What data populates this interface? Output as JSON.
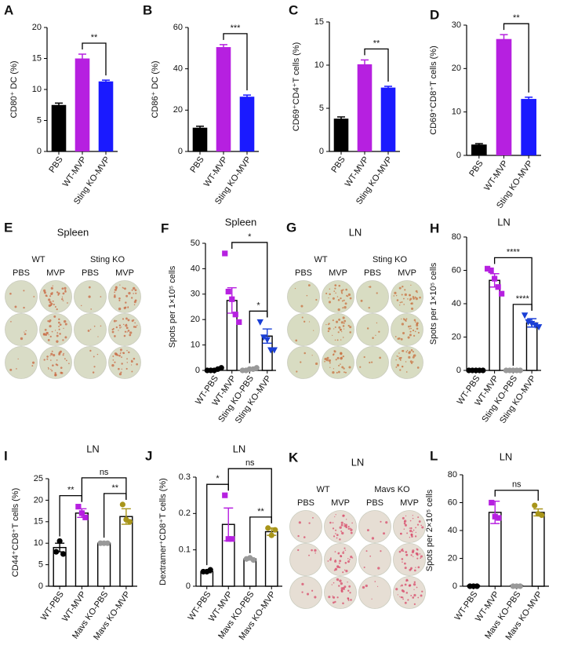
{
  "chart_data": [
    {
      "type": "bar",
      "panel": "A",
      "ylabel": "CD80⁺ DC (%)",
      "categories": [
        "PBS",
        "WT-MVP",
        "Sting KO-MVP"
      ],
      "values": [
        7.5,
        15,
        11.3
      ],
      "errors": [
        0.3,
        0.7,
        0.2
      ],
      "colors": [
        "#000000",
        "#b620e0",
        "#1a1aff"
      ],
      "ylim": [
        0,
        20
      ],
      "yticks": [
        0,
        5,
        10,
        15,
        20
      ],
      "brackets": [
        {
          "between": [
            "WT-MVP",
            "Sting KO-MVP"
          ],
          "label": "**"
        }
      ]
    },
    {
      "type": "bar",
      "panel": "B",
      "ylabel": "CD86⁺ DC (%)",
      "categories": [
        "PBS",
        "WT-MVP",
        "Sting KO-MVP"
      ],
      "values": [
        11.5,
        50.5,
        26.5
      ],
      "errors": [
        0.7,
        1.2,
        0.8
      ],
      "colors": [
        "#000000",
        "#b620e0",
        "#1a1aff"
      ],
      "ylim": [
        0,
        60
      ],
      "yticks": [
        0,
        20,
        40,
        60
      ],
      "brackets": [
        {
          "between": [
            "WT-MVP",
            "Sting KO-MVP"
          ],
          "label": "***"
        }
      ]
    },
    {
      "type": "bar",
      "panel": "C",
      "ylabel": "CD69⁺CD4⁺T cells (%)",
      "categories": [
        "PBS",
        "WT-MVP",
        "Sting KO-MVP"
      ],
      "values": [
        3.8,
        10.1,
        7.4
      ],
      "errors": [
        0.2,
        0.5,
        0.15
      ],
      "colors": [
        "#000000",
        "#b620e0",
        "#1a1aff"
      ],
      "ylim": [
        0,
        15
      ],
      "yticks": [
        0,
        5,
        10,
        15
      ],
      "brackets": [
        {
          "between": [
            "WT-MVP",
            "Sting KO-MVP"
          ],
          "label": "**"
        }
      ]
    },
    {
      "type": "bar",
      "panel": "D",
      "ylabel": "CD69⁺CD8⁺T cells (%)",
      "categories": [
        "PBS",
        "WT-MVP",
        "Sting KO-MVP"
      ],
      "values": [
        2.5,
        26.8,
        13
      ],
      "errors": [
        0.2,
        1,
        0.4
      ],
      "colors": [
        "#000000",
        "#b620e0",
        "#1a1aff"
      ],
      "ylim": [
        0,
        30
      ],
      "yticks": [
        0,
        10,
        20,
        30
      ],
      "brackets": [
        {
          "between": [
            "WT-MVP",
            "Sting KO-MVP"
          ],
          "label": "**"
        }
      ]
    },
    {
      "type": "bar_dot",
      "panel": "F",
      "title": "Spleen",
      "ylabel": "Spots per 1×10⁵ cells",
      "categories": [
        "WT-PBS",
        "WT-MVP",
        "Sting KO-PBS",
        "Sting KO-MVP"
      ],
      "values": [
        0.4,
        27.5,
        0.4,
        13.5
      ],
      "errors": [
        0.2,
        5,
        0.2,
        2.8
      ],
      "points": [
        [
          0,
          0,
          0,
          0.5,
          1
        ],
        [
          46,
          31,
          28,
          22,
          19
        ],
        [
          0,
          0,
          0.5,
          0.5,
          1
        ],
        [
          19,
          13,
          12,
          8,
          8
        ]
      ],
      "point_colors": [
        "#000000",
        "#b620e0",
        "#999999",
        "#1a3fd6"
      ],
      "markers": [
        "circle",
        "square",
        "circle",
        "triangle-down"
      ],
      "ylim": [
        0,
        50
      ],
      "yticks": [
        0,
        10,
        20,
        30,
        40,
        50
      ],
      "brackets": [
        {
          "between": [
            "Sting KO-PBS",
            "Sting KO-MVP"
          ],
          "label": "*"
        },
        {
          "between": [
            "WT-MVP",
            "Sting KO-MVP"
          ],
          "label": "*"
        }
      ]
    },
    {
      "type": "bar_dot",
      "panel": "H",
      "title": "LN",
      "ylabel": "Spots per 1×10⁵ cells",
      "categories": [
        "WT-PBS",
        "WT-MVP",
        "Sting KO-PBS",
        "Sting KO-MVP"
      ],
      "values": [
        0,
        54,
        0,
        28.5
      ],
      "errors": [
        0,
        4,
        0,
        2.5
      ],
      "points": [
        [
          0,
          0,
          0,
          0,
          0
        ],
        [
          61,
          60,
          55,
          50,
          46
        ],
        [
          0,
          0,
          0,
          0,
          0
        ],
        [
          33,
          29,
          28,
          27,
          26
        ]
      ],
      "point_colors": [
        "#000000",
        "#b620e0",
        "#999999",
        "#1a3fd6"
      ],
      "markers": [
        "circle",
        "square",
        "circle",
        "triangle-down"
      ],
      "ylim": [
        0,
        80
      ],
      "yticks": [
        0,
        20,
        40,
        60,
        80
      ],
      "brackets": [
        {
          "between": [
            "Sting KO-PBS",
            "Sting KO-MVP"
          ],
          "label": "****"
        },
        {
          "between": [
            "WT-MVP",
            "Sting KO-MVP"
          ],
          "label": "****"
        }
      ]
    },
    {
      "type": "bar_dot",
      "panel": "I",
      "title": "LN",
      "ylabel": "CD44⁺CD8⁺T cells (%)",
      "categories": [
        "WT-PBS",
        "WT-MVP",
        "Mavs KO-PBS",
        "Mavs KO-MVP"
      ],
      "values": [
        9,
        17,
        10,
        16.2
      ],
      "errors": [
        1,
        1,
        0.2,
        1.8
      ],
      "points": [
        [
          8,
          10.5,
          7.5
        ],
        [
          18.5,
          17,
          16
        ],
        [
          10,
          10,
          10
        ],
        [
          19,
          15.5,
          15
        ]
      ],
      "point_colors": [
        "#000000",
        "#b620e0",
        "#999999",
        "#a8951a"
      ],
      "markers": [
        "circle",
        "square",
        "circle",
        "circle"
      ],
      "ylim": [
        0,
        25
      ],
      "yticks": [
        0,
        5,
        10,
        15,
        20,
        25
      ],
      "brackets": [
        {
          "between": [
            "WT-PBS",
            "WT-MVP"
          ],
          "label": "**"
        },
        {
          "between": [
            "Mavs KO-PBS",
            "Mavs KO-MVP"
          ],
          "label": "**"
        },
        {
          "between": [
            "WT-MVP",
            "Mavs KO-MVP"
          ],
          "label": "ns"
        }
      ]
    },
    {
      "type": "bar_dot",
      "panel": "J",
      "title": "LN",
      "ylabel": "Dextramer⁺CD8⁺T cells (%)",
      "categories": [
        "WT-PBS",
        "WT-MVP",
        "Mavs KO-PBS",
        "Mavs KO-MVP"
      ],
      "values": [
        0.04,
        0.17,
        0.075,
        0.15
      ],
      "errors": [
        0.003,
        0.045,
        0.003,
        0.01
      ],
      "points": [
        [
          0.04,
          0.04,
          0.045
        ],
        [
          0.25,
          0.13,
          0.13
        ],
        [
          0.075,
          0.078,
          0.072
        ],
        [
          0.16,
          0.14,
          0.155
        ]
      ],
      "point_colors": [
        "#000000",
        "#b620e0",
        "#999999",
        "#a8951a"
      ],
      "markers": [
        "circle",
        "square",
        "circle",
        "circle"
      ],
      "ylim": [
        0,
        0.3
      ],
      "yticks": [
        0,
        0.1,
        0.2,
        0.3
      ],
      "brackets": [
        {
          "between": [
            "WT-PBS",
            "WT-MVP"
          ],
          "label": "*"
        },
        {
          "between": [
            "Mavs KO-PBS",
            "Mavs KO-MVP"
          ],
          "label": "**"
        },
        {
          "between": [
            "WT-MVP",
            "Mavs KO-MVP"
          ],
          "label": "ns"
        }
      ]
    },
    {
      "type": "bar_dot",
      "panel": "L",
      "title": "LN",
      "ylabel": "Spots per 2×10⁵ cells",
      "categories": [
        "WT-PBS",
        "WT-MVP",
        "Mavs KO-PBS",
        "Mavs KO-MVP"
      ],
      "values": [
        0.5,
        53,
        0.5,
        53
      ],
      "errors": [
        0,
        8,
        0,
        2.5
      ],
      "points": [
        [
          0,
          0,
          0
        ],
        [
          60,
          50,
          49
        ],
        [
          0,
          0,
          0
        ],
        [
          58,
          52,
          51
        ]
      ],
      "point_colors": [
        "#000000",
        "#b620e0",
        "#999999",
        "#a8951a"
      ],
      "markers": [
        "circle",
        "square",
        "circle",
        "circle"
      ],
      "ylim": [
        0,
        80
      ],
      "yticks": [
        0,
        20,
        40,
        60,
        80
      ],
      "brackets": [
        {
          "between": [
            "WT-MVP",
            "Mavs KO-MVP"
          ],
          "label": "ns"
        }
      ]
    }
  ],
  "image_panels": [
    {
      "panel": "E",
      "title": "Spleen",
      "groups": [
        "WT",
        "Sting KO"
      ],
      "columns": [
        "PBS",
        "MVP",
        "PBS",
        "MVP"
      ],
      "well_color": "#d9dcc6",
      "spot_color": "#c8653f"
    },
    {
      "panel": "G",
      "title": "LN",
      "groups": [
        "WT",
        "Sting KO"
      ],
      "columns": [
        "PBS",
        "MVP",
        "PBS",
        "MVP"
      ],
      "well_color": "#d8dcc2",
      "spot_color": "#c8703f"
    },
    {
      "panel": "K",
      "title": "LN",
      "groups": [
        "WT",
        "Mavs KO"
      ],
      "columns": [
        "PBS",
        "MVP",
        "PBS",
        "MVP"
      ],
      "well_color": "#e6ded4",
      "spot_color": "#d84a6a"
    }
  ]
}
